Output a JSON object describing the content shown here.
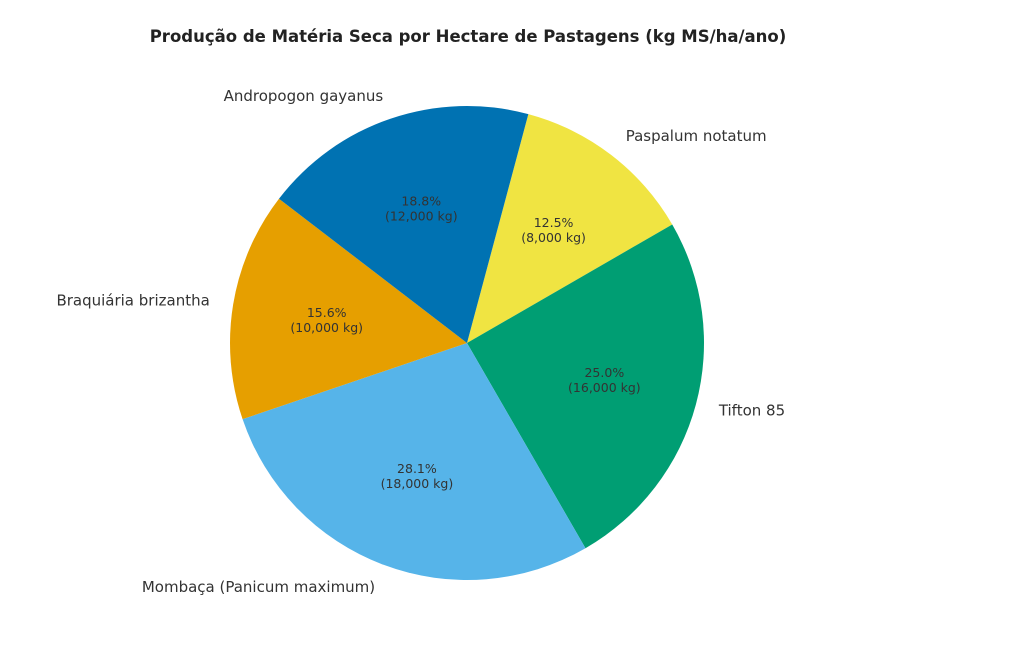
{
  "chart_data": {
    "type": "pie",
    "title": "Produção de Matéria Seca por Hectare de Pastagens (kg MS/ha/ano)",
    "categories": [
      "Paspalum notatum",
      "Tifton 85",
      "Mombaça (Panicum maximum)",
      "Braquiária brizantha",
      "Andropogon gayanus"
    ],
    "values": [
      8000,
      16000,
      18000,
      10000,
      12000
    ],
    "percent_labels": [
      "12.5%",
      "25.0%",
      "28.1%",
      "15.6%",
      "18.8%"
    ],
    "value_labels": [
      "(8,000 kg)",
      "(16,000 kg)",
      "(18,000 kg)",
      "(10,000 kg)",
      "(12,000 kg)"
    ],
    "colors": [
      "#F0E442",
      "#009E73",
      "#56B4E9",
      "#E69F00",
      "#0072B2"
    ],
    "start_angle_deg": 75,
    "direction": "clockwise"
  }
}
